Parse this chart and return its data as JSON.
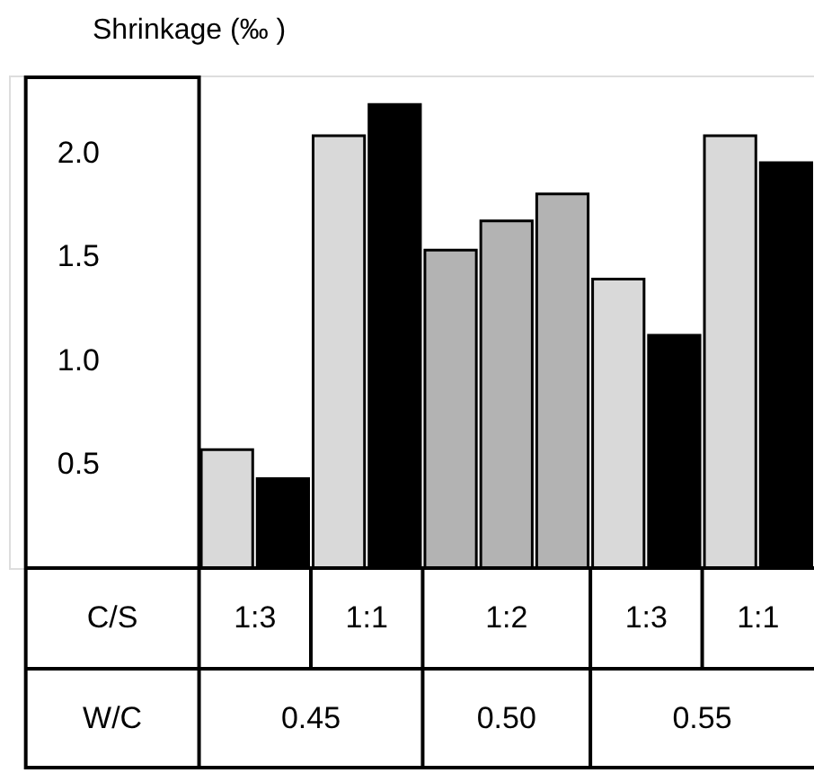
{
  "chart_data": {
    "type": "bar",
    "ylabel": "Shrinkage (‰ )",
    "categories": [
      null,
      null,
      null,
      null,
      null,
      null,
      null,
      null,
      null,
      null,
      null
    ],
    "values": [
      0.57,
      0.43,
      2.08,
      2.23,
      1.53,
      1.67,
      1.8,
      1.39,
      1.12,
      2.08,
      1.95
    ],
    "colors": [
      "#d9d9d9",
      "#000000",
      "#d9d9d9",
      "#000000",
      "#b3b3b3",
      "#b3b3b3",
      "#b3b3b3",
      "#d9d9d9",
      "#000000",
      "#d9d9d9",
      "#000000"
    ],
    "ylim": [
      0,
      2.37
    ],
    "yticks": [
      0.5,
      {
        "value": 1.0,
        "label": "1.0"
      },
      1.5,
      {
        "value": 2.0,
        "label": "2.0"
      }
    ],
    "tick_labels": "y",
    "annotations": [
      "C/S",
      "1:3",
      "1:1",
      "1:2",
      "1:3",
      "1:1",
      "W/C",
      "0.45",
      "0.50",
      "0.55"
    ]
  }
}
